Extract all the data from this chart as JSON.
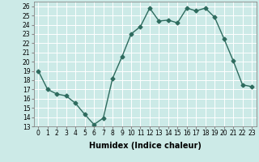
{
  "x": [
    0,
    1,
    2,
    3,
    4,
    5,
    6,
    7,
    8,
    9,
    10,
    11,
    12,
    13,
    14,
    15,
    16,
    17,
    18,
    19,
    20,
    21,
    22,
    23
  ],
  "y": [
    19,
    17,
    16.5,
    16.3,
    15.5,
    14.3,
    13.2,
    13.9,
    18.2,
    20.5,
    23.0,
    23.8,
    25.8,
    24.4,
    24.5,
    24.2,
    25.8,
    25.5,
    25.8,
    24.8,
    22.5,
    20.1,
    17.5,
    17.3
  ],
  "line_color": "#2e6b5e",
  "marker": "D",
  "markersize": 2.5,
  "linewidth": 1.0,
  "bg_color": "#cceae7",
  "grid_color": "#ffffff",
  "xlabel": "Humidex (Indice chaleur)",
  "xlim": [
    -0.5,
    23.5
  ],
  "ylim": [
    13,
    26.5
  ],
  "yticks": [
    13,
    14,
    15,
    16,
    17,
    18,
    19,
    20,
    21,
    22,
    23,
    24,
    25,
    26
  ],
  "xticks": [
    0,
    1,
    2,
    3,
    4,
    5,
    6,
    7,
    8,
    9,
    10,
    11,
    12,
    13,
    14,
    15,
    16,
    17,
    18,
    19,
    20,
    21,
    22,
    23
  ],
  "tick_fontsize": 5.5,
  "xlabel_fontsize": 7.0
}
